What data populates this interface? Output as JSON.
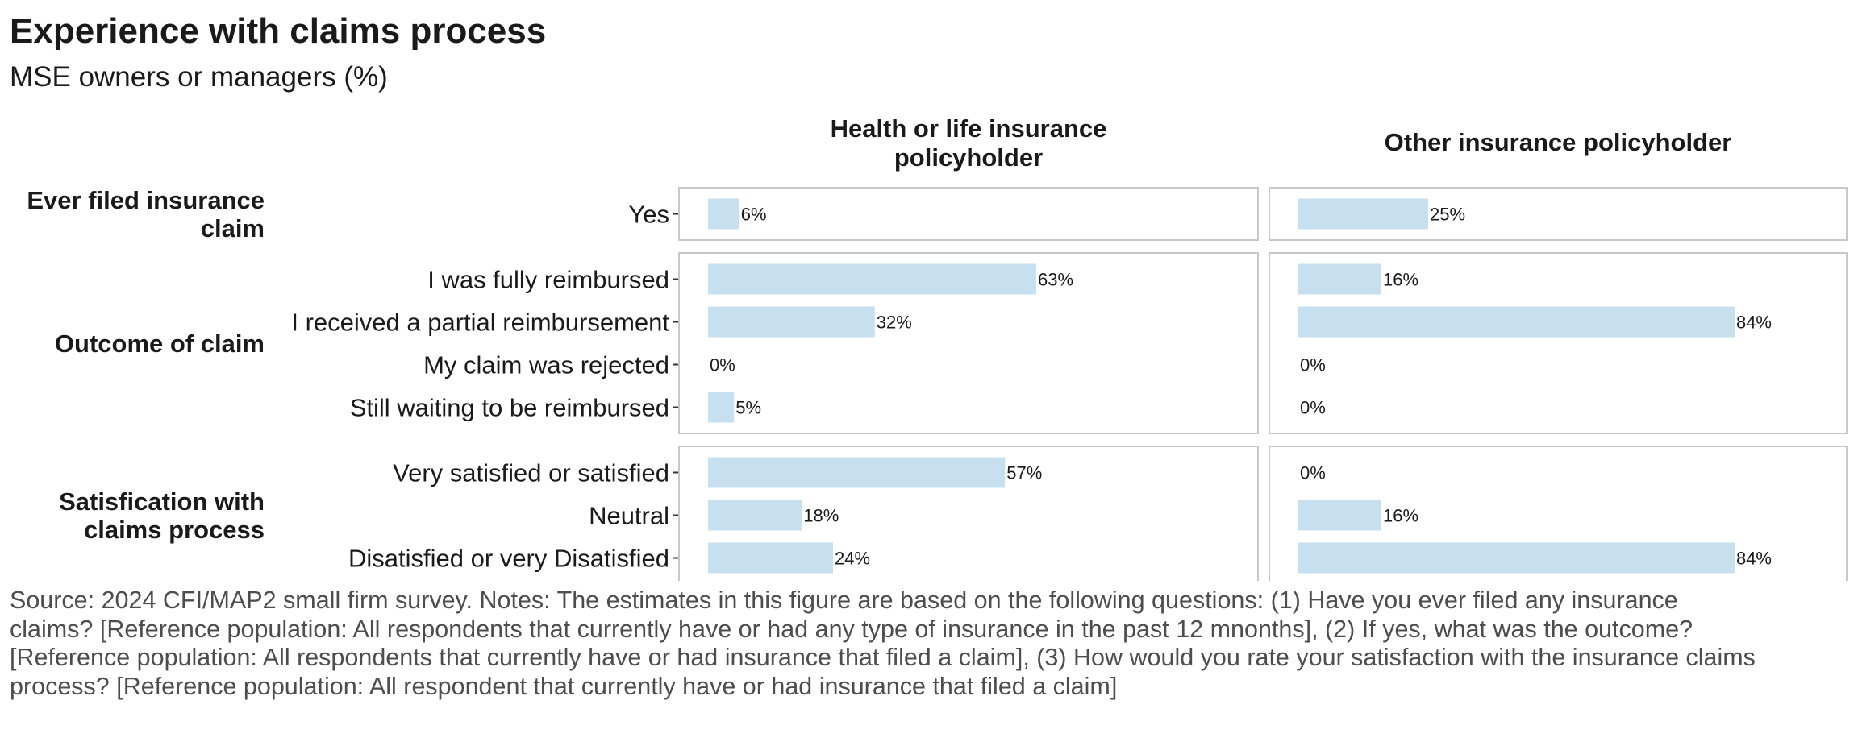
{
  "title": "Experience with claims process",
  "subtitle": "MSE owners or managers (%)",
  "source_note": "Source: 2024 CFI/MAP2 small firm survey. Notes: The estimates in this figure are based on the following questions: (1) Have you ever filed any insurance claims? [Reference population: All respondents that currently have or had any type of insurance in the past 12 mnonths], (2) If yes, what was the outcome? [Reference population: All respondents that currently have or had insurance that filed a claim], (3) How would you rate your satisfaction with the insurance claims process? [Reference population: All respondent that currently have or had insurance that filed a claim]",
  "colors": {
    "bar": "#c6e0f0",
    "panel_border": "#c8c8c8",
    "grid": "#ebebeb"
  },
  "chart_data": {
    "type": "bar",
    "orientation": "horizontal",
    "xlim": [
      0,
      100
    ],
    "value_suffix": "%",
    "columns": [
      "Health or life insurance policyholder",
      "Other insurance policyholder"
    ],
    "groups": [
      {
        "label": "Ever filed insurance claim",
        "categories": [
          "Yes"
        ],
        "values": [
          [
            6
          ],
          [
            25
          ]
        ]
      },
      {
        "label": "Outcome of claim",
        "categories": [
          "I was fully reimbursed",
          "I received a partial reimbursement",
          "My claim was rejected",
          "Still waiting to be reimbursed"
        ],
        "values": [
          [
            63,
            32,
            0,
            5
          ],
          [
            16,
            84,
            0,
            0
          ]
        ]
      },
      {
        "label": "Satisfication with claims process",
        "categories": [
          "Very satisfied or satisfied",
          "Neutral",
          "Disatisfied or very Disatisfied"
        ],
        "values": [
          [
            57,
            18,
            24
          ],
          [
            0,
            16,
            84
          ]
        ]
      }
    ]
  }
}
